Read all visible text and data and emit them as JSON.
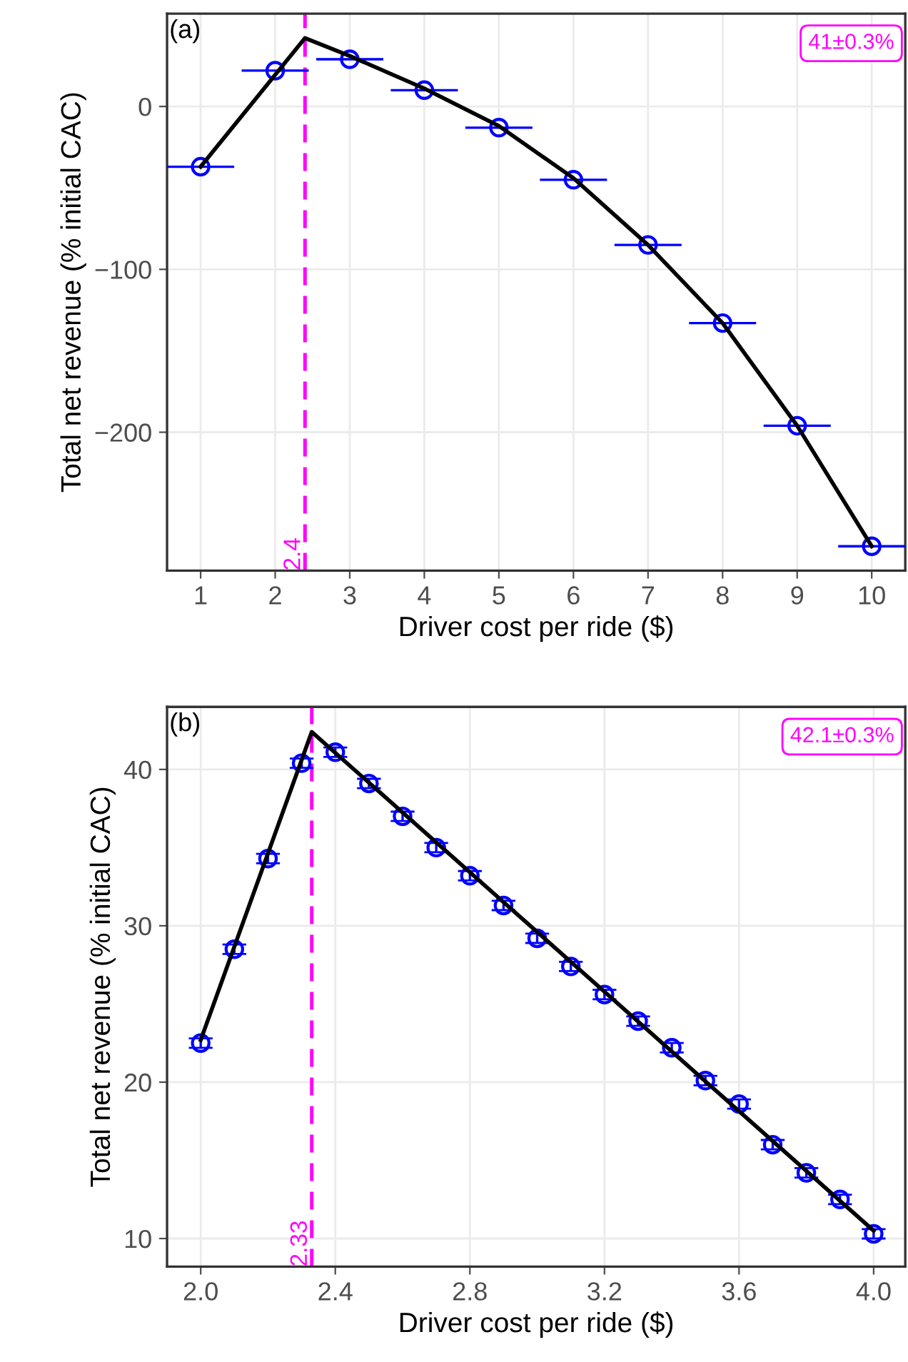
{
  "chart_data": [
    {
      "type": "scatter",
      "xlabel": "Driver cost per ride ($)",
      "ylabel": "Total net revenue (% initial CAC)",
      "xlim": [
        0.55,
        10.45
      ],
      "xticks": [
        1,
        2,
        3,
        4,
        5,
        6,
        7,
        8,
        9,
        10
      ],
      "ylim": [
        -285,
        57
      ],
      "yticks": [
        {
          "value": -200,
          "label": "−200"
        },
        {
          "value": -100,
          "label": "−100"
        },
        0
      ],
      "grid": true,
      "series": [
        {
          "color": "#0000ff",
          "marker": "circle",
          "x": [
            1,
            2,
            3,
            4,
            5,
            6,
            7,
            8,
            9,
            10
          ],
          "values": [
            -37,
            22,
            29,
            10,
            -13,
            -45,
            -85,
            -133,
            -196,
            -270
          ],
          "xerrors": [
            0.45,
            0.45,
            0.45,
            0.45,
            0.45,
            0.45,
            0.45,
            0.45,
            0.45,
            0.45
          ]
        },
        {
          "type": "line",
          "color": "#000000",
          "marker": "none",
          "x": [
            1,
            2.4,
            3,
            4,
            5,
            6,
            7,
            8,
            9,
            10
          ],
          "values": [
            -37,
            42,
            31,
            11,
            -12,
            -44,
            -85,
            -133,
            -196,
            -270
          ]
        }
      ],
      "ref_lines": [
        {
          "axis": "x",
          "value": 2.4,
          "label": "2.4",
          "color": "#ff00ff",
          "line_style": "dashed"
        }
      ],
      "annotations": [
        "(a)",
        "41±0.3%"
      ]
    },
    {
      "type": "scatter",
      "xlabel": "Driver cost per ride ($)",
      "ylabel": "Total net revenue (% initial CAC)",
      "xlim": [
        1.9,
        4.094
      ],
      "xticks": [
        {
          "value": 2.0,
          "label": "2.0"
        },
        {
          "value": 2.4,
          "label": "2.4"
        },
        {
          "value": 2.8,
          "label": "2.8"
        },
        {
          "value": 3.2,
          "label": "3.2"
        },
        {
          "value": 3.6,
          "label": "3.6"
        },
        {
          "value": 4.0,
          "label": "4.0"
        }
      ],
      "ylim": [
        8.2,
        44
      ],
      "yticks": [
        10,
        20,
        30,
        40
      ],
      "grid": true,
      "series": [
        {
          "color": "#0000ff",
          "marker": "circle",
          "x": [
            2.0,
            2.1,
            2.2,
            2.3,
            2.4,
            2.5,
            2.6,
            2.7,
            2.8,
            2.9,
            3.0,
            3.1,
            3.2,
            3.3,
            3.4,
            3.5,
            3.6,
            3.7,
            3.8,
            3.9,
            4.0
          ],
          "values": [
            22.5,
            28.5,
            34.3,
            40.4,
            41.1,
            39.1,
            37.0,
            35.0,
            33.2,
            31.3,
            29.2,
            27.4,
            25.6,
            23.9,
            22.2,
            20.1,
            18.6,
            16.0,
            14.2,
            12.5,
            10.3
          ],
          "errors": [
            0.3,
            0.3,
            0.3,
            0.3,
            0.3,
            0.3,
            0.3,
            0.3,
            0.3,
            0.3,
            0.3,
            0.3,
            0.3,
            0.3,
            0.3,
            0.3,
            0.3,
            0.3,
            0.3,
            0.3,
            0.3
          ]
        },
        {
          "type": "line",
          "color": "#000000",
          "marker": "none",
          "x": [
            2.0,
            2.33,
            4.0
          ],
          "values": [
            22.7,
            42.4,
            10.5
          ]
        }
      ],
      "ref_lines": [
        {
          "axis": "x",
          "value": 2.33,
          "label": "2.33",
          "color": "#ff00ff",
          "line_style": "dashed"
        }
      ],
      "annotations": [
        "(b)",
        "42.1±0.3%"
      ]
    }
  ]
}
